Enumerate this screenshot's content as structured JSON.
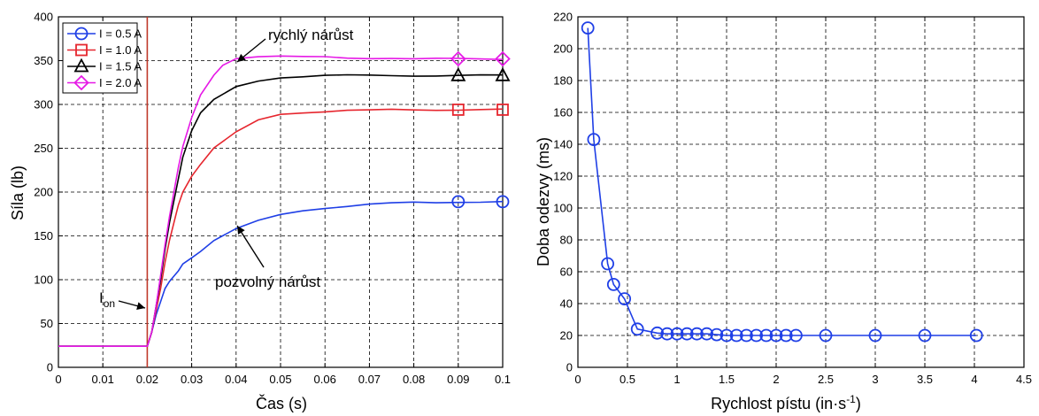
{
  "chart_data": [
    {
      "type": "line",
      "xlabel": "Čas (s)",
      "ylabel": "Síla (lb)",
      "xlim": [
        0,
        0.1
      ],
      "ylim": [
        0,
        400
      ],
      "xticks": [
        0,
        0.01,
        0.02,
        0.03,
        0.04,
        0.05,
        0.06,
        0.07,
        0.08,
        0.09,
        0.1
      ],
      "xtick_labels": [
        "0",
        "0.01",
        "0.02",
        "0.03",
        "0.04",
        "0.05",
        "0.06",
        "0.07",
        "0.08",
        "0.09",
        "0.1"
      ],
      "yticks": [
        0,
        50,
        100,
        150,
        200,
        250,
        300,
        350,
        400
      ],
      "grid": true,
      "legend_position": "top-left",
      "vline_x": 0.02,
      "series": [
        {
          "name": "I = 0.5 A",
          "color": "#1f3fe6",
          "marker": "circle",
          "x": [
            0,
            0.005,
            0.01,
            0.015,
            0.02,
            0.021,
            0.022,
            0.023,
            0.024,
            0.025,
            0.026,
            0.027,
            0.028,
            0.03,
            0.032,
            0.035,
            0.04,
            0.045,
            0.05,
            0.055,
            0.06,
            0.065,
            0.07,
            0.075,
            0.08,
            0.085,
            0.09,
            0.095,
            0.1
          ],
          "y": [
            24,
            24,
            24,
            24,
            24,
            40,
            60,
            75,
            90,
            98,
            104,
            110,
            118,
            125,
            133,
            145,
            158,
            167,
            174,
            179,
            182,
            184,
            186,
            187,
            188,
            188,
            189,
            189,
            189
          ],
          "markers_x": [
            0.09,
            0.1
          ],
          "markers_y": [
            189,
            189
          ]
        },
        {
          "name": "I = 1.0 A",
          "color": "#e6262e",
          "marker": "square",
          "x": [
            0,
            0.005,
            0.01,
            0.015,
            0.02,
            0.021,
            0.022,
            0.023,
            0.024,
            0.025,
            0.026,
            0.027,
            0.028,
            0.03,
            0.032,
            0.035,
            0.04,
            0.045,
            0.05,
            0.055,
            0.06,
            0.065,
            0.07,
            0.075,
            0.08,
            0.085,
            0.09,
            0.095,
            0.1
          ],
          "y": [
            24,
            24,
            24,
            24,
            24,
            40,
            65,
            90,
            120,
            145,
            165,
            185,
            200,
            218,
            232,
            250,
            268,
            282,
            289,
            291,
            292,
            293,
            293,
            294,
            294,
            294,
            294,
            294,
            294
          ],
          "markers_x": [
            0.09,
            0.1
          ],
          "markers_y": [
            294,
            294
          ]
        },
        {
          "name": "I = 1.5 A",
          "color": "#000000",
          "marker": "triangle",
          "x": [
            0,
            0.005,
            0.01,
            0.015,
            0.02,
            0.021,
            0.022,
            0.023,
            0.024,
            0.025,
            0.026,
            0.027,
            0.028,
            0.03,
            0.032,
            0.035,
            0.04,
            0.045,
            0.05,
            0.055,
            0.06,
            0.065,
            0.07,
            0.075,
            0.08,
            0.085,
            0.09,
            0.095,
            0.1
          ],
          "y": [
            24,
            24,
            24,
            24,
            24,
            40,
            70,
            100,
            135,
            165,
            190,
            215,
            240,
            270,
            290,
            305,
            320,
            327,
            331,
            332,
            333,
            333,
            333,
            333,
            333,
            333,
            333,
            333,
            333
          ],
          "markers_x": [
            0.09,
            0.1
          ],
          "markers_y": [
            333,
            333
          ]
        },
        {
          "name": "I = 2.0 A",
          "color": "#e619e6",
          "marker": "diamond",
          "x": [
            0,
            0.005,
            0.01,
            0.015,
            0.02,
            0.021,
            0.022,
            0.023,
            0.024,
            0.025,
            0.026,
            0.027,
            0.028,
            0.03,
            0.032,
            0.035,
            0.037,
            0.04,
            0.045,
            0.05,
            0.055,
            0.06,
            0.065,
            0.07,
            0.075,
            0.08,
            0.085,
            0.09,
            0.095,
            0.1
          ],
          "y": [
            24,
            24,
            24,
            24,
            24,
            40,
            70,
            105,
            140,
            172,
            200,
            228,
            252,
            285,
            310,
            333,
            345,
            353,
            355,
            355,
            354,
            354,
            353,
            353,
            353,
            352,
            352,
            352,
            352,
            352
          ],
          "markers_x": [
            0.09,
            0.1
          ],
          "markers_y": [
            352,
            352
          ]
        }
      ],
      "annotations": {
        "fast": "rychlý nárůst",
        "slow": "pozvolný nárůst",
        "ion_main": "I",
        "ion_sub": "on"
      }
    },
    {
      "type": "line",
      "xlabel_main": "Rychlost pístu (in·s",
      "xlabel_sup": "-1",
      "xlabel_end": ")",
      "ylabel": "Doba odezvy (ms)",
      "xlim": [
        0,
        4.5
      ],
      "ylim": [
        0,
        220
      ],
      "xticks": [
        0,
        0.5,
        1,
        1.5,
        2,
        2.5,
        3,
        3.5,
        4,
        4.5
      ],
      "xtick_labels": [
        "0",
        "0.5",
        "1",
        "1.5",
        "2",
        "2.5",
        "3",
        "3.5",
        "4",
        "4.5"
      ],
      "yticks": [
        0,
        20,
        40,
        60,
        80,
        100,
        120,
        140,
        160,
        180,
        200,
        220
      ],
      "grid": true,
      "series": [
        {
          "color": "#1f3fe6",
          "marker": "circle",
          "x": [
            0.1,
            0.16,
            0.3,
            0.36,
            0.47,
            0.6,
            0.8,
            0.9,
            1.0,
            1.1,
            1.2,
            1.3,
            1.4,
            1.5,
            1.6,
            1.7,
            1.8,
            1.9,
            2.0,
            2.1,
            2.2,
            2.5,
            3.0,
            3.5,
            4.02
          ],
          "y": [
            213,
            143,
            65,
            52,
            43,
            24,
            21.5,
            21,
            21,
            21,
            21,
            21,
            20.5,
            20,
            20,
            20,
            20,
            20,
            20,
            20,
            20,
            20,
            20,
            20,
            20
          ]
        }
      ]
    }
  ]
}
